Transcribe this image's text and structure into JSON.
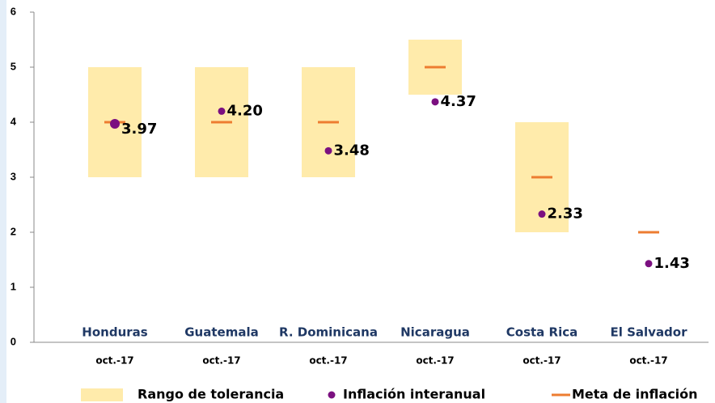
{
  "chart_data": {
    "type": "range-target",
    "categories": [
      "Honduras",
      "Guatemala",
      "R. Dominicana",
      "Nicaragua",
      "Costa Rica",
      "El Salvador"
    ],
    "periods": [
      "oct.-17",
      "oct.-17",
      "oct.-17",
      "oct.-17",
      "oct.-17",
      "oct.-17"
    ],
    "series": [
      {
        "name": "Rango de tolerancia",
        "color": "#ffebab",
        "low": [
          3,
          3,
          3,
          4.5,
          2,
          null
        ],
        "high": [
          5,
          5,
          5,
          5.5,
          4,
          null
        ]
      },
      {
        "name": "Inflación interanual",
        "color": "#7b1080",
        "values": [
          3.97,
          4.2,
          3.48,
          4.37,
          2.33,
          1.43
        ],
        "value_labels": [
          "3.97",
          "4.20",
          "3.48",
          "4.37",
          "2.33",
          "1.43"
        ]
      },
      {
        "name": "Meta de inflación",
        "color": "#ed7d31",
        "values": [
          4,
          4,
          4,
          5,
          3,
          2
        ]
      }
    ],
    "ylim": [
      0,
      6
    ],
    "yticks": [
      0,
      1,
      2,
      3,
      4,
      5,
      6
    ],
    "grid": false
  }
}
